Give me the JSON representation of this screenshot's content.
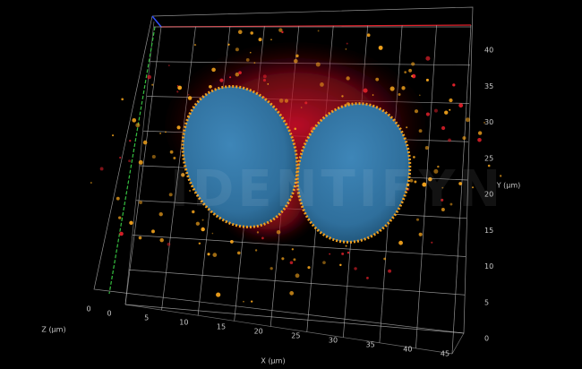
{
  "axes": {
    "x": {
      "label": "X (µm)",
      "ticks": [
        0,
        5,
        10,
        15,
        20,
        25,
        30,
        35,
        40,
        45
      ]
    },
    "y": {
      "label": "Y (µm)",
      "ticks": [
        0,
        5,
        10,
        15,
        20,
        25,
        30,
        35,
        40
      ]
    },
    "z": {
      "label": "Z (µm)",
      "ticks": [
        0
      ]
    }
  },
  "watermark": "IDENTIFYN"
}
